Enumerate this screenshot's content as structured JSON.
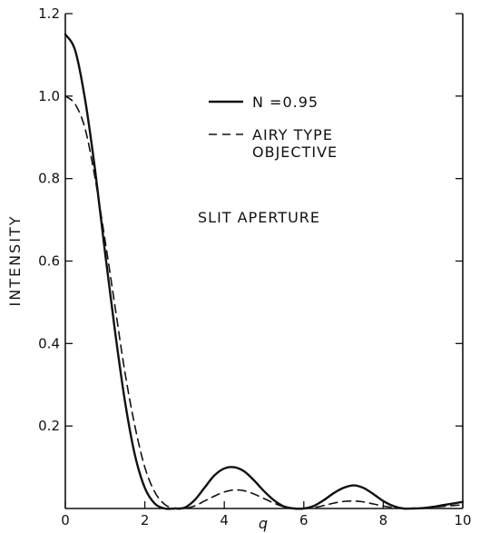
{
  "chart_data": {
    "type": "line",
    "xlabel": "q",
    "ylabel": "INTENSITY",
    "xlim": [
      0,
      10
    ],
    "ylim": [
      0,
      1.2
    ],
    "x_ticks": [
      0,
      2,
      4,
      6,
      8,
      10
    ],
    "y_ticks": [
      0.2,
      0.4,
      0.6,
      0.8,
      1.0,
      1.2
    ],
    "y_tick_labels": [
      "0.2",
      "0.4",
      "0.6",
      "0.8",
      "1.0",
      "1.2"
    ],
    "grid": false,
    "legend_position": "top-right",
    "annotation": "SLIT APERTURE",
    "series": [
      {
        "name": "N =0.95",
        "style": "solid",
        "color": "#111111",
        "x": [
          0,
          0.25,
          0.5,
          0.75,
          1.0,
          1.25,
          1.5,
          1.75,
          2.0,
          2.25,
          2.5,
          2.75,
          3.0,
          3.25,
          3.5,
          3.75,
          4.0,
          4.25,
          4.5,
          4.75,
          5.0,
          5.25,
          5.5,
          5.75,
          6.0,
          6.25,
          6.5,
          6.75,
          7.0,
          7.25,
          7.5,
          7.75,
          8.0,
          8.25,
          8.5,
          8.75,
          9.0,
          9.25,
          9.5,
          9.75,
          10.0
        ],
        "y": [
          1.15,
          1.11,
          0.99,
          0.82,
          0.62,
          0.43,
          0.26,
          0.13,
          0.05,
          0.012,
          0.0,
          0.0,
          0.002,
          0.02,
          0.05,
          0.08,
          0.097,
          0.1,
          0.09,
          0.068,
          0.042,
          0.02,
          0.005,
          0.0,
          0.0,
          0.006,
          0.02,
          0.037,
          0.05,
          0.056,
          0.05,
          0.035,
          0.018,
          0.006,
          0.0,
          0.0,
          0.001,
          0.004,
          0.008,
          0.012,
          0.016
        ]
      },
      {
        "name": "AIRY TYPE OBJECTIVE",
        "style": "dashed",
        "color": "#111111",
        "x": [
          0,
          0.25,
          0.5,
          0.75,
          1.0,
          1.25,
          1.5,
          1.75,
          2.0,
          2.25,
          2.5,
          2.75,
          3.0,
          3.25,
          3.5,
          3.75,
          4.0,
          4.25,
          4.5,
          4.75,
          5.0,
          5.25,
          5.5,
          5.75,
          6.0,
          6.25,
          6.5,
          6.75,
          7.0,
          7.25,
          7.5,
          7.75,
          8.0,
          8.25,
          8.5,
          8.75,
          9.0,
          9.25,
          9.5,
          9.75,
          10.0
        ],
        "y": [
          1.0,
          0.98,
          0.92,
          0.8,
          0.65,
          0.49,
          0.33,
          0.2,
          0.1,
          0.04,
          0.01,
          0.0,
          0.0,
          0.006,
          0.018,
          0.03,
          0.04,
          0.045,
          0.043,
          0.035,
          0.024,
          0.013,
          0.004,
          0.0,
          0.0,
          0.002,
          0.007,
          0.013,
          0.017,
          0.018,
          0.016,
          0.011,
          0.006,
          0.002,
          0.0,
          0.0,
          0.001,
          0.003,
          0.005,
          0.007,
          0.009
        ]
      }
    ]
  }
}
